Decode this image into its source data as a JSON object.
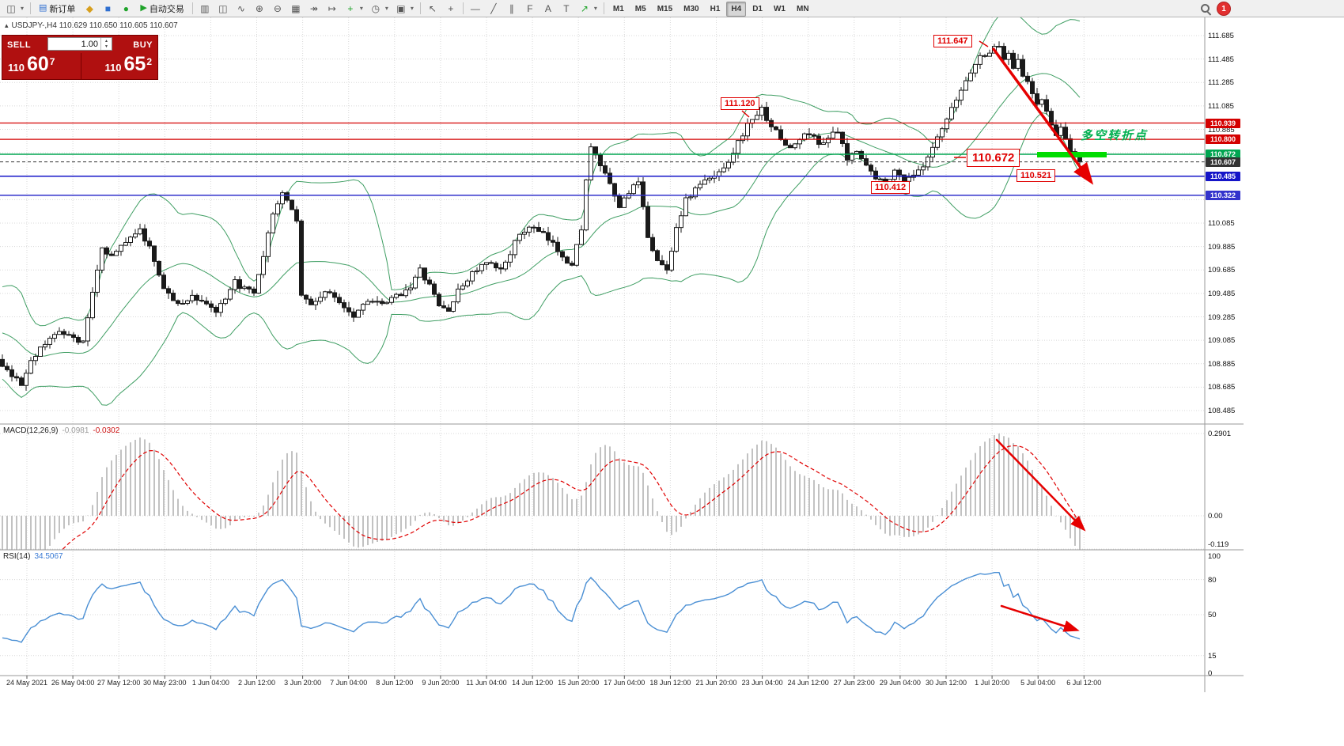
{
  "toolbar": {
    "new_order_label": "新订单",
    "autotrade_label": "自动交易",
    "timeframes": [
      "M1",
      "M5",
      "M15",
      "M30",
      "H1",
      "H4",
      "D1",
      "W1",
      "MN"
    ],
    "active_timeframe": "H4",
    "badge_count": "1"
  },
  "icons": {
    "chart_window": "◫",
    "caret": "▾",
    "new_order": "▤",
    "community": "◆",
    "hosting": "■",
    "signals": "●",
    "play": "▶",
    "bars": "▥",
    "candles": "◫",
    "line_chart": "∿",
    "zoom_in": "⊕",
    "zoom_out": "⊖",
    "tile": "▦",
    "auto_scroll": "↠",
    "chart_shift": "↦",
    "indicator_add": "+",
    "clock": "◷",
    "snapshot": "▣",
    "cursor": "↖",
    "crosshair": "+",
    "hline": "—",
    "trendline": "╱",
    "channel": "∥",
    "fibonacci": "F",
    "text": "A",
    "label": "T",
    "arrows": "↗",
    "up_spin": "▲",
    "down_spin": "▼",
    "symbol_marker": "▴"
  },
  "symbol_bar": {
    "text": "USDJPY-,H4  110.629 110.650 110.605 110.607"
  },
  "trade_panel": {
    "sell_label": "SELL",
    "buy_label": "BUY",
    "volume": "1.00",
    "sell": {
      "big": "110",
      "pips": "60",
      "pt": "7"
    },
    "buy": {
      "big": "110",
      "pips": "65",
      "pt": "2"
    }
  },
  "chart_data": {
    "type": "candlestick",
    "symbol": "USDJPY-",
    "timeframe": "H4",
    "quote": {
      "open": "110.629",
      "high": "110.650",
      "low": "110.605",
      "close": "110.607"
    },
    "price_axis": {
      "min": 108.485,
      "max": 111.685,
      "grid_step": 0.2,
      "labels": [
        "111.685",
        "111.485",
        "111.285",
        "111.085",
        "110.885",
        "110.085",
        "109.885",
        "109.685",
        "109.485",
        "109.285",
        "109.085",
        "108.885",
        "108.685",
        "108.485"
      ]
    },
    "price_lines": [
      {
        "label": "110.939",
        "value": 110.939,
        "color": "#d40000",
        "weight": 1.2,
        "style": "solid"
      },
      {
        "label": "110.800",
        "value": 110.8,
        "color": "#d40000",
        "weight": 1.2,
        "style": "solid"
      },
      {
        "label": "110.672",
        "value": 110.672,
        "color": "#00a651",
        "weight": 1.5,
        "style": "solid"
      },
      {
        "label": "110.607",
        "value": 110.607,
        "color": "#333333",
        "weight": 1.0,
        "style": "dash"
      },
      {
        "label": "110.485",
        "value": 110.485,
        "color": "#1515c8",
        "weight": 1.5,
        "style": "solid"
      },
      {
        "label": "110.322",
        "value": 110.322,
        "color": "#3333cc",
        "weight": 1.5,
        "style": "solid"
      }
    ],
    "annotations": [
      {
        "id": "ann-111647",
        "text": "111.647"
      },
      {
        "id": "ann-111120",
        "text": "111.120"
      },
      {
        "id": "ann-110672",
        "text": "110.672"
      },
      {
        "id": "ann-110412",
        "text": "110.412"
      },
      {
        "id": "ann-110521",
        "text": "110.521"
      },
      {
        "id": "ann-turning",
        "text": "多空转折点"
      }
    ],
    "highlight": {
      "color": "#00dc00"
    },
    "trend_arrow_color": "#e60000",
    "bollinger_color": "#3f9e63",
    "indicators": {
      "macd": {
        "name": "MACD(12,26,9)",
        "value_main": "-0.0981",
        "value_signal": "-0.0302",
        "scale": [
          "0.2901",
          "0.00",
          "-0.119"
        ],
        "hist_color": "#c2c2c2",
        "signal_color": "#e00000"
      },
      "rsi": {
        "name": "RSI(14)",
        "value": "34.5067",
        "scale": [
          "100",
          "80",
          "50",
          "15",
          "0"
        ],
        "levels": [
          80,
          50,
          15
        ],
        "line_color": "#4a8fd4"
      }
    },
    "pre_path": [
      [
        -25,
        109.9
      ],
      [
        -20,
        109.0
      ],
      [
        -15,
        109.6
      ],
      [
        -10,
        108.9
      ],
      [
        -5,
        109.2
      ]
    ],
    "price_path": [
      [
        0,
        108.85
      ],
      [
        2,
        108.78
      ],
      [
        4,
        108.7
      ],
      [
        6,
        108.92
      ],
      [
        9,
        109.05
      ],
      [
        12,
        109.18
      ],
      [
        15,
        109.1
      ],
      [
        17,
        109.06
      ],
      [
        19,
        109.5
      ],
      [
        21,
        109.88
      ],
      [
        23,
        109.8
      ],
      [
        25,
        109.88
      ],
      [
        27,
        109.98
      ],
      [
        29,
        110.02
      ],
      [
        31,
        109.88
      ],
      [
        33,
        109.62
      ],
      [
        35,
        109.48
      ],
      [
        37,
        109.38
      ],
      [
        40,
        109.46
      ],
      [
        43,
        109.4
      ],
      [
        45,
        109.33
      ],
      [
        47,
        109.42
      ],
      [
        49,
        109.58
      ],
      [
        51,
        109.52
      ],
      [
        53,
        109.48
      ],
      [
        55,
        109.78
      ],
      [
        57,
        110.18
      ],
      [
        59,
        110.32
      ],
      [
        61,
        110.22
      ],
      [
        62,
        110.1
      ],
      [
        63,
        109.48
      ],
      [
        65,
        109.38
      ],
      [
        68,
        109.5
      ],
      [
        71,
        109.42
      ],
      [
        74,
        109.3
      ],
      [
        77,
        109.44
      ],
      [
        80,
        109.38
      ],
      [
        83,
        109.46
      ],
      [
        86,
        109.55
      ],
      [
        88,
        109.68
      ],
      [
        90,
        109.55
      ],
      [
        92,
        109.38
      ],
      [
        94,
        109.34
      ],
      [
        96,
        109.5
      ],
      [
        99,
        109.66
      ],
      [
        102,
        109.74
      ],
      [
        105,
        109.68
      ],
      [
        108,
        109.92
      ],
      [
        111,
        110.06
      ],
      [
        114,
        109.98
      ],
      [
        117,
        109.86
      ],
      [
        120,
        109.72
      ],
      [
        122,
        110.05
      ],
      [
        123,
        110.45
      ],
      [
        124,
        110.72
      ],
      [
        126,
        110.58
      ],
      [
        128,
        110.4
      ],
      [
        130,
        110.22
      ],
      [
        132,
        110.36
      ],
      [
        134,
        110.42
      ],
      [
        136,
        109.98
      ],
      [
        138,
        109.76
      ],
      [
        140,
        109.68
      ],
      [
        142,
        110.05
      ],
      [
        144,
        110.28
      ],
      [
        147,
        110.42
      ],
      [
        150,
        110.48
      ],
      [
        153,
        110.62
      ],
      [
        156,
        110.85
      ],
      [
        158,
        110.98
      ],
      [
        160,
        111.05
      ],
      [
        162,
        110.92
      ],
      [
        164,
        110.8
      ],
      [
        166,
        110.72
      ],
      [
        168,
        110.8
      ],
      [
        170,
        110.86
      ],
      [
        172,
        110.76
      ],
      [
        174,
        110.82
      ],
      [
        176,
        110.86
      ],
      [
        178,
        110.62
      ],
      [
        180,
        110.72
      ],
      [
        182,
        110.58
      ],
      [
        184,
        110.46
      ],
      [
        186,
        110.44
      ],
      [
        188,
        110.52
      ],
      [
        190,
        110.46
      ],
      [
        192,
        110.5
      ],
      [
        194,
        110.55
      ],
      [
        196,
        110.72
      ],
      [
        198,
        110.88
      ],
      [
        200,
        111.05
      ],
      [
        202,
        111.22
      ],
      [
        204,
        111.38
      ],
      [
        206,
        111.5
      ],
      [
        208,
        111.55
      ],
      [
        210,
        111.6
      ],
      [
        211,
        111.48
      ],
      [
        212,
        111.55
      ],
      [
        213,
        111.42
      ],
      [
        214,
        111.5
      ],
      [
        215,
        111.35
      ],
      [
        216,
        111.28
      ],
      [
        217,
        111.18
      ],
      [
        218,
        111.1
      ],
      [
        219,
        111.15
      ],
      [
        220,
        111.02
      ],
      [
        221,
        110.92
      ],
      [
        222,
        110.85
      ],
      [
        223,
        110.88
      ],
      [
        224,
        110.78
      ],
      [
        225,
        110.7
      ],
      [
        226,
        110.64
      ],
      [
        227,
        110.61
      ]
    ],
    "time_axis": [
      "24 May 2021",
      "26 May 04:00",
      "27 May 12:00",
      "30 May 23:00",
      "1 Jun 04:00",
      "2 Jun 12:00",
      "3 Jun 20:00",
      "7 Jun 04:00",
      "8 Jun 12:00",
      "9 Jun 20:00",
      "11 Jun 04:00",
      "14 Jun 12:00",
      "15 Jun 20:00",
      "17 Jun 04:00",
      "18 Jun 12:00",
      "21 Jun 20:00",
      "23 Jun 04:00",
      "24 Jun 12:00",
      "27 Jun 23:00",
      "29 Jun 04:00",
      "30 Jun 12:00",
      "1 Jul 20:00",
      "5 Jul 04:00",
      "6 Jul 12:00"
    ]
  }
}
